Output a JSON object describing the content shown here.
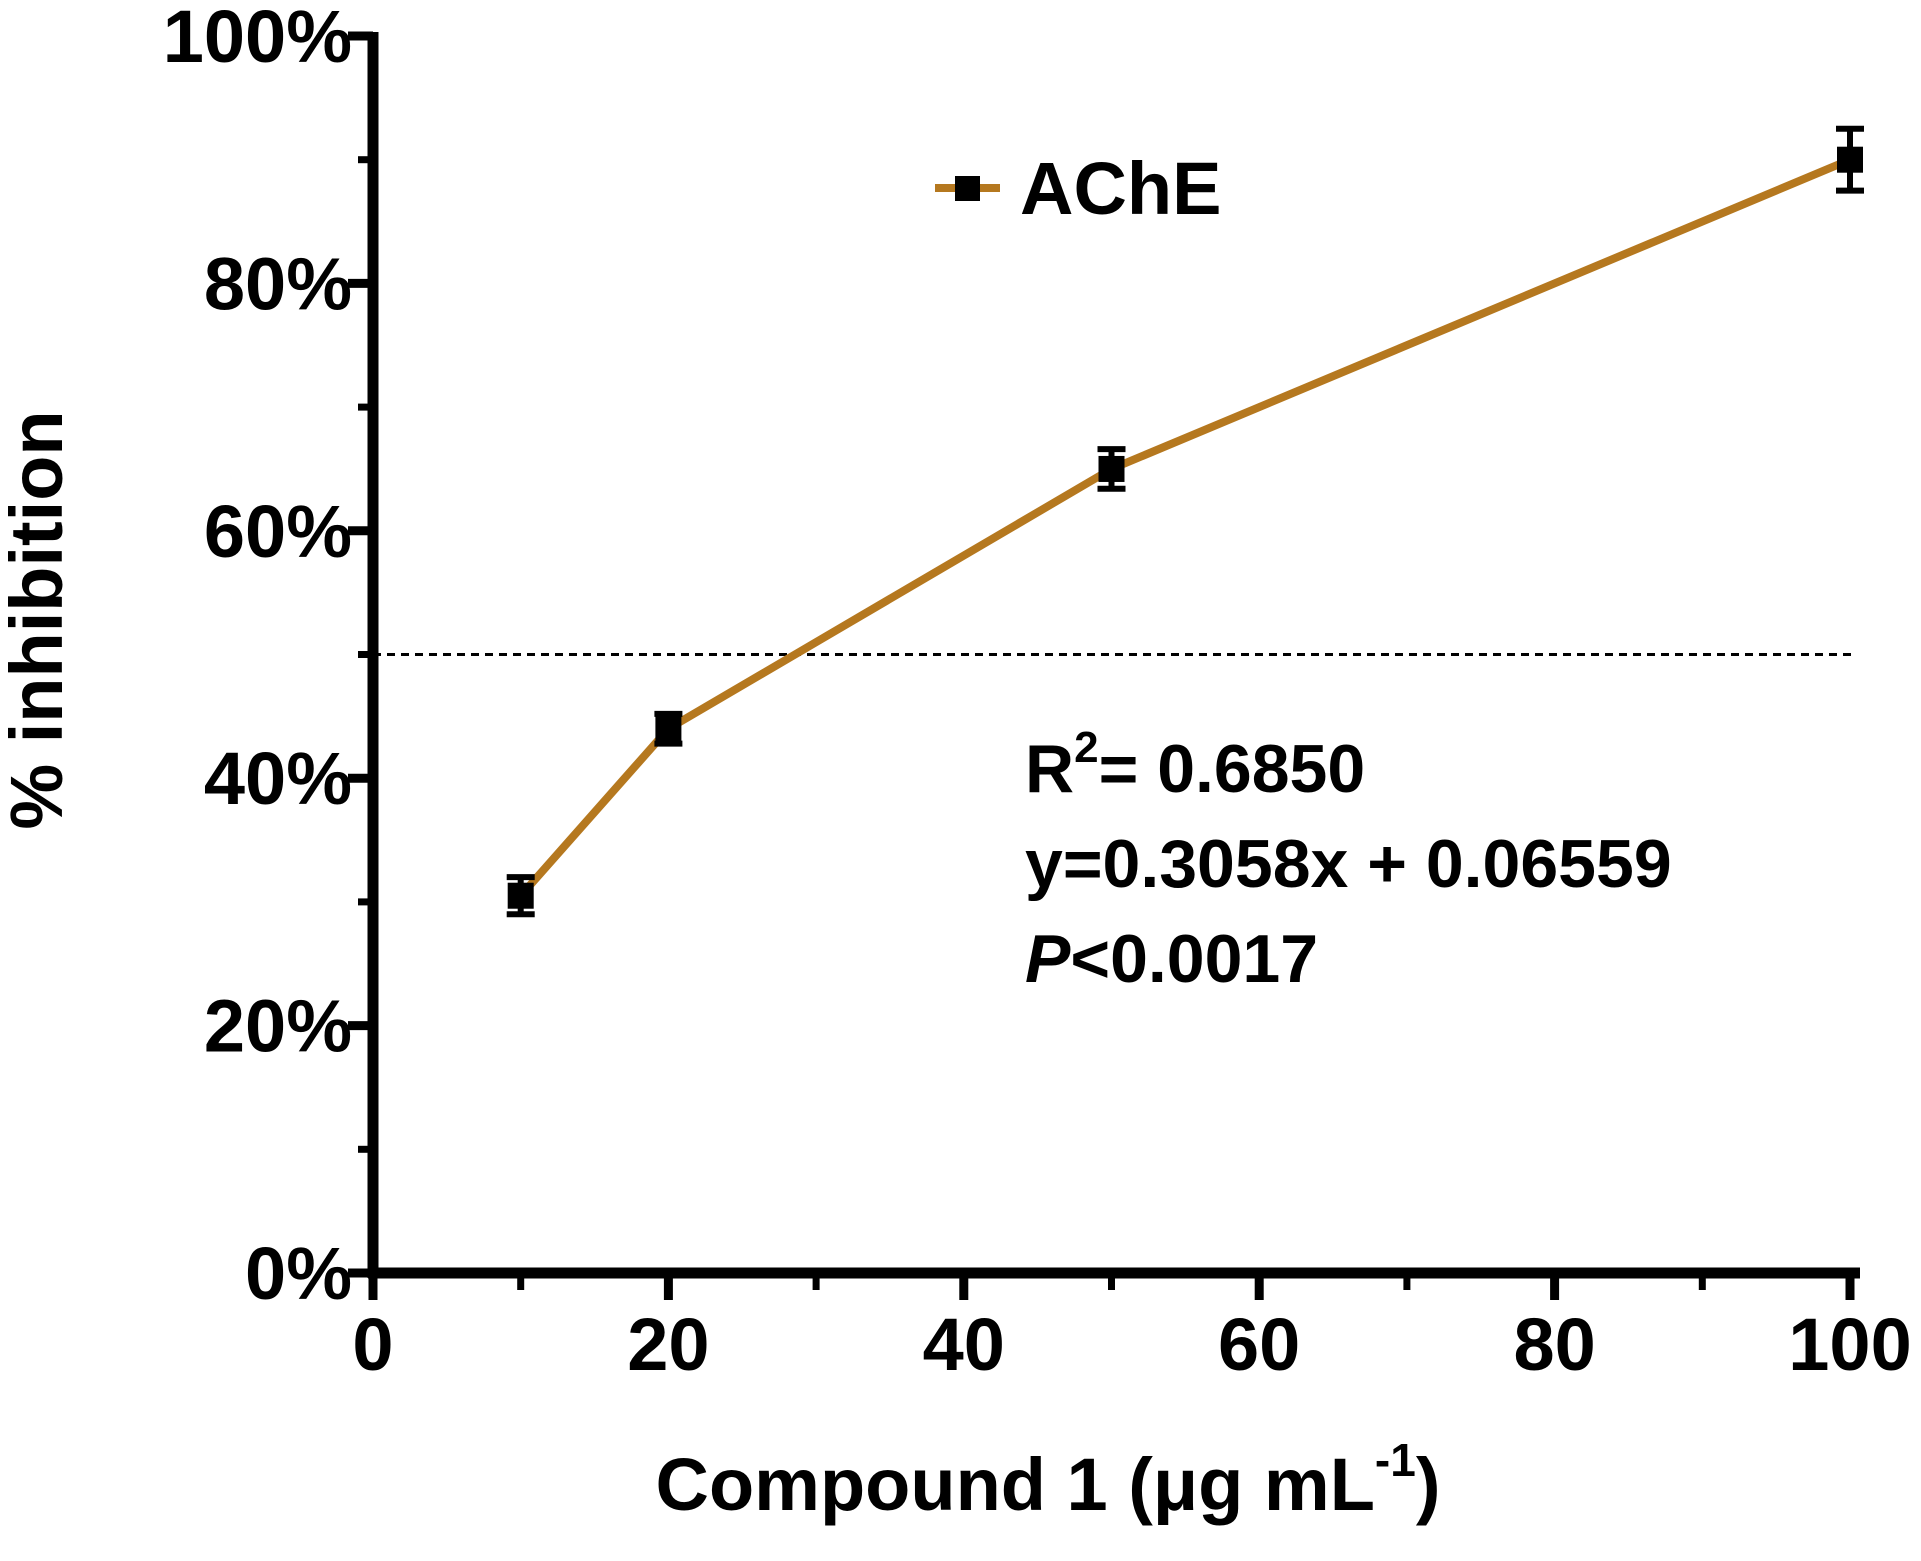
{
  "chart_data": {
    "type": "line",
    "title": "",
    "xlabel": "Compound 1 (μg mL",
    "xlabel_sup": "-1",
    "xlabel_close": ")",
    "ylabel": "% inhibition",
    "xlim": [
      0,
      100
    ],
    "ylim": [
      0,
      100
    ],
    "x_ticks": [
      0,
      20,
      40,
      60,
      80,
      100
    ],
    "x_tick_labels": [
      "0",
      "20",
      "40",
      "60",
      "80",
      "100"
    ],
    "y_ticks": [
      0,
      20,
      40,
      60,
      80,
      100
    ],
    "y_tick_labels": [
      "0%",
      "20%",
      "40%",
      "60%",
      "80%",
      "100%"
    ],
    "reference_line_y": 50,
    "legend_position": "top-center",
    "series": [
      {
        "name": "AChE",
        "color": "#B5781F",
        "x": [
          10,
          20,
          50,
          100
        ],
        "y": [
          30.5,
          44,
          65,
          90
        ],
        "error": [
          1.5,
          1.2,
          1.6,
          2.5
        ]
      }
    ],
    "annotations": {
      "r2_label": "R",
      "r2_sup": "2",
      "r2_value": "= 0.6850",
      "equation": "y=0.3058x + 0.06559",
      "p_symbol": "P",
      "p_value": "<0.0017"
    }
  }
}
